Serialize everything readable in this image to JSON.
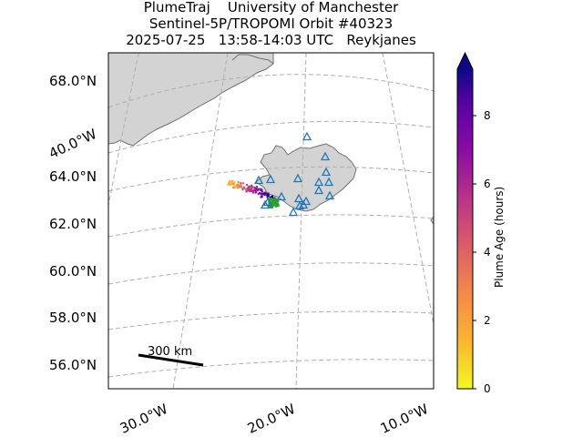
{
  "title": {
    "line1": "PlumeTraj    University of Manchester",
    "line2": "Sentinel-5P/TROPOMI Orbit #40323",
    "line3": "2025-07-25   13:58-14:03 UTC   Reykjanes"
  },
  "map": {
    "lat_labels": [
      "68.0°N",
      "64.0°N",
      "62.0°N",
      "60.0°N",
      "58.0°N",
      "56.0°N"
    ],
    "lon_labels": [
      "40.0°W",
      "30.0°W",
      "20.0°W",
      "10.0°W"
    ],
    "scale_bar_label": "300 km",
    "land_color": "#d3d3d3",
    "coast_color": "#707070",
    "grid_color": "#b0b0b0",
    "volcano_marker_color": "#1f77b4",
    "vent_marker_color": "#2ca02c"
  },
  "colorbar": {
    "label": "Plume Age (hours)",
    "ticks": [
      "0",
      "2",
      "4",
      "6",
      "8"
    ],
    "min": 0,
    "max": 9.3,
    "colormap": "plasma_r"
  }
}
